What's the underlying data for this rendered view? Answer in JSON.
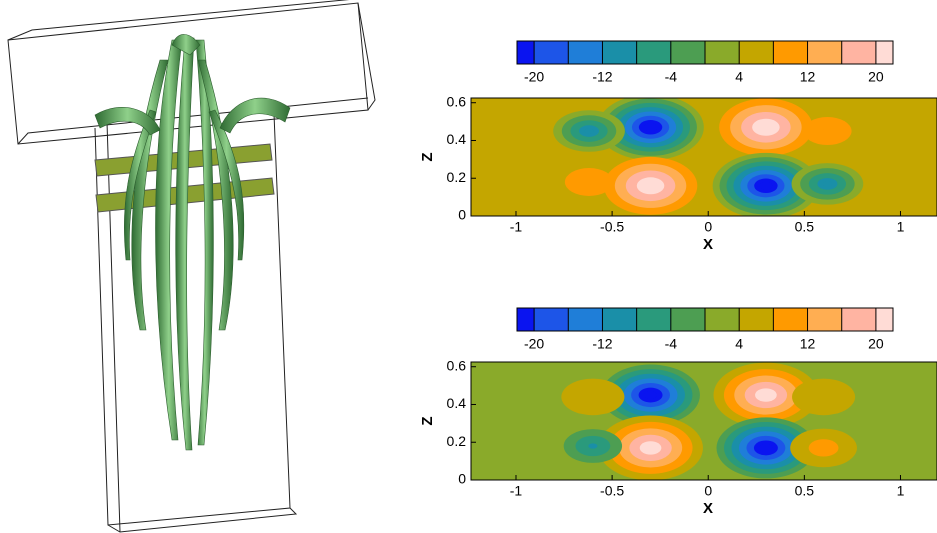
{
  "chart_data": [
    {
      "type": "contour",
      "xlabel": "X",
      "ylabel": "Z",
      "xlim": [
        -1.234,
        1.19
      ],
      "ylim": [
        0,
        0.625
      ],
      "xticks": [
        -1,
        -0.5,
        0,
        0.5,
        1
      ],
      "yticks": [
        0,
        0.2,
        0.4,
        0.6
      ],
      "clim": [
        -22,
        22
      ],
      "levels": [
        -20,
        -16,
        -12,
        -8,
        -4,
        0,
        4,
        8,
        12,
        16,
        20
      ],
      "colorbar_ticks": [
        -20,
        -12,
        -4,
        4,
        12,
        20
      ],
      "colors": [
        "#0a14f0",
        "#1d55e8",
        "#1f7ed8",
        "#1a8fa8",
        "#2a9a7c",
        "#4d9e52",
        "#8aaa2a",
        "#c4a600",
        "#ff9a00",
        "#ffae52",
        "#ffb4a2",
        "#ffdcd6"
      ],
      "background_value": 5,
      "peaks": {
        "x": [
          -0.3,
          0.3,
          -0.3,
          0.3,
          -0.62,
          0.62,
          -0.62,
          0.62
        ],
        "z": [
          0.47,
          0.47,
          0.16,
          0.16,
          0.45,
          0.45,
          0.18,
          0.17
        ],
        "values": [
          -22,
          22,
          22,
          -22,
          -10,
          12,
          12,
          -10
        ]
      }
    },
    {
      "type": "contour",
      "xlabel": "X",
      "ylabel": "Z",
      "xlim": [
        -1.234,
        1.19
      ],
      "ylim": [
        0,
        0.625
      ],
      "xticks": [
        -1,
        -0.5,
        0,
        0.5,
        1
      ],
      "yticks": [
        0,
        0.2,
        0.4,
        0.6
      ],
      "clim": [
        -22,
        22
      ],
      "levels": [
        -20,
        -16,
        -12,
        -8,
        -4,
        0,
        4,
        8,
        12,
        16,
        20
      ],
      "colorbar_ticks": [
        -20,
        -12,
        -4,
        4,
        12,
        20
      ],
      "colors": [
        "#0a14f0",
        "#1d55e8",
        "#1f7ed8",
        "#1a8fa8",
        "#2a9a7c",
        "#4d9e52",
        "#8aaa2a",
        "#c4a600",
        "#ff9a00",
        "#ffae52",
        "#ffb4a2",
        "#ffdcd6"
      ],
      "background_value": 3,
      "peaks": {
        "x": [
          -0.3,
          0.3,
          -0.3,
          0.3,
          -0.6,
          0.6,
          -0.6,
          0.6
        ],
        "z": [
          0.45,
          0.45,
          0.17,
          0.17,
          0.44,
          0.44,
          0.18,
          0.17
        ],
        "values": [
          -22,
          21,
          21,
          -22,
          8,
          8,
          -8,
          10
        ]
      }
    }
  ]
}
